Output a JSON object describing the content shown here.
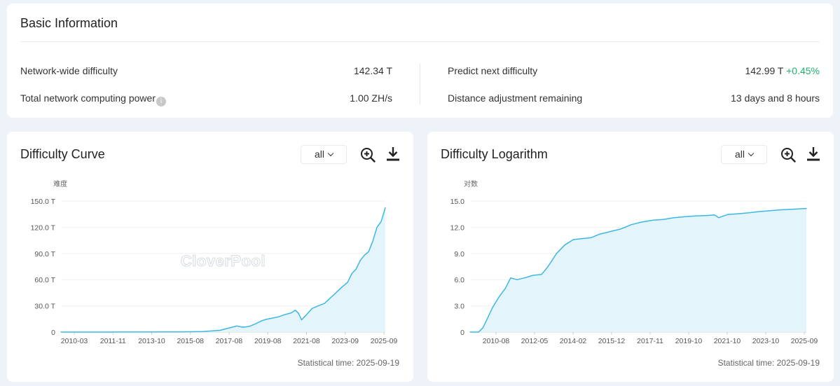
{
  "basic_info": {
    "title": "Basic Information",
    "network_difficulty_label": "Network-wide difficulty",
    "network_difficulty_value": "142.34 T",
    "computing_power_label": "Total network computing power",
    "computing_power_value": "1.00 ZH/s",
    "predict_label": "Predict next difficulty",
    "predict_value": "142.99 T",
    "predict_change": "+0.45%",
    "distance_label": "Distance adjustment remaining",
    "distance_value": "13 days and 8 hours",
    "info_icon": "i"
  },
  "watermark": "CloverPool",
  "colors": {
    "line": "#3db7e4",
    "area": "#e3f4fb",
    "change_positive": "#23b26d"
  },
  "curve_card": {
    "title": "Difficulty Curve",
    "range_selected": "all",
    "footer": "Statistical time: 2025-09-19",
    "zoom_icon": "zoom-in-icon",
    "download_icon": "download-icon"
  },
  "log_card": {
    "title": "Difficulty Logarithm",
    "range_selected": "all",
    "footer": "Statistical time: 2025-09-19",
    "zoom_icon": "zoom-in-icon",
    "download_icon": "download-icon"
  },
  "chart_data": [
    {
      "type": "area",
      "title": "Difficulty Curve",
      "ylabel": "难度",
      "xlabel": "",
      "ylim": [
        0,
        150
      ],
      "y_unit": "T",
      "y_ticks": [
        "0",
        "30.0 T",
        "60.0 T",
        "90.0 T",
        "120.0 T",
        "150.0 T"
      ],
      "y_tick_values": [
        0,
        30,
        60,
        90,
        120,
        150
      ],
      "x_ticks": [
        "2010-03",
        "2011-11",
        "2013-10",
        "2015-08",
        "2017-08",
        "2019-08",
        "2021-08",
        "2023-09",
        "2025-09"
      ],
      "series": [
        {
          "x": [
            2010.2,
            2012.0,
            2014.0,
            2016.0,
            2017.0,
            2017.8,
            2018.2,
            2018.6,
            2018.9,
            2019.2,
            2019.5,
            2019.8,
            2020.0,
            2020.3,
            2020.6,
            2020.9,
            2021.2,
            2021.4,
            2021.55,
            2021.7,
            2021.9,
            2022.2,
            2022.5,
            2022.8,
            2023.0,
            2023.3,
            2023.6,
            2023.9,
            2024.1,
            2024.3,
            2024.5,
            2024.7,
            2024.9,
            2025.1,
            2025.3,
            2025.5,
            2025.7
          ],
          "y": [
            0,
            0.01,
            0.1,
            0.2,
            0.6,
            2.0,
            4.5,
            7.0,
            5.5,
            6.5,
            9.5,
            13.0,
            14.5,
            16.0,
            17.5,
            20.0,
            22.0,
            25.0,
            21.5,
            14.0,
            19.0,
            27.0,
            30.0,
            33.0,
            37.5,
            44.0,
            51.0,
            57.0,
            67.0,
            72.0,
            82.0,
            88.0,
            92.0,
            104.0,
            120.0,
            126.5,
            142.3
          ]
        }
      ]
    },
    {
      "type": "area",
      "title": "Difficulty Logarithm",
      "ylabel": "对数",
      "xlabel": "",
      "ylim": [
        0,
        15
      ],
      "y_ticks": [
        "0",
        "3.0",
        "6.0",
        "9.0",
        "12.0",
        "15.0"
      ],
      "y_tick_values": [
        0,
        3,
        6,
        9,
        12,
        15
      ],
      "x_ticks": [
        "2010-08",
        "2012-05",
        "2014-02",
        "2015-12",
        "2017-11",
        "2019-10",
        "2021-10",
        "2023-10",
        "2025-09"
      ],
      "series": [
        {
          "x": [
            2009.95,
            2010.35,
            2010.55,
            2010.75,
            2011.0,
            2011.3,
            2011.6,
            2011.85,
            2012.15,
            2012.5,
            2012.9,
            2013.3,
            2013.6,
            2014.0,
            2014.4,
            2014.8,
            2015.2,
            2015.6,
            2016.0,
            2016.5,
            2017.0,
            2017.5,
            2018.0,
            2018.5,
            2019.0,
            2019.5,
            2020.0,
            2020.5,
            2021.0,
            2021.4,
            2021.6,
            2022.0,
            2022.5,
            2023.0,
            2023.5,
            2024.0,
            2024.5,
            2025.0,
            2025.7
          ],
          "y": [
            0.0,
            0.0,
            0.5,
            1.5,
            2.8,
            4.0,
            5.0,
            6.2,
            6.0,
            6.2,
            6.5,
            6.6,
            7.5,
            9.0,
            10.0,
            10.6,
            10.7,
            10.8,
            11.2,
            11.5,
            11.8,
            12.3,
            12.6,
            12.8,
            12.9,
            13.1,
            13.2,
            13.3,
            13.35,
            13.4,
            13.1,
            13.45,
            13.55,
            13.65,
            13.8,
            13.9,
            14.0,
            14.05,
            14.15
          ]
        }
      ]
    }
  ]
}
